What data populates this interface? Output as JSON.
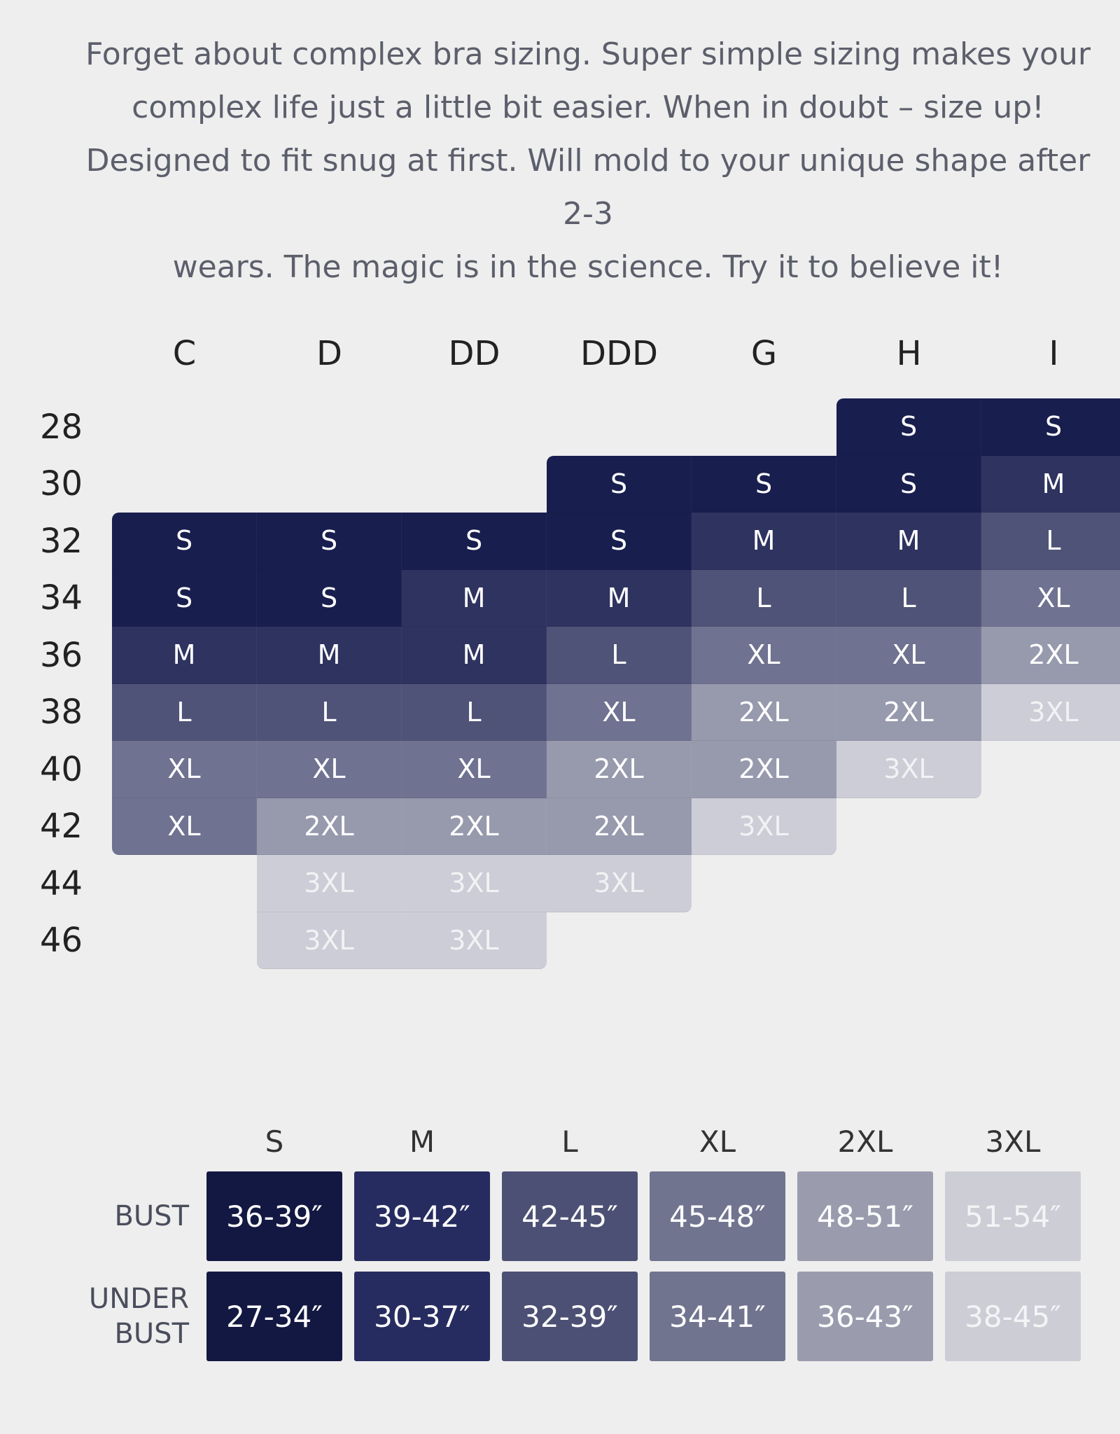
{
  "intro": {
    "line1": "Forget about complex bra sizing. Super simple sizing makes your",
    "line2": "complex life just a little bit easier. When in doubt – size up!",
    "line3": "Designed to fit snug at first. Will mold to your unique shape after 2-3",
    "line4": "wears. The magic is in the science. Try it to believe it!"
  },
  "colors": {
    "S": "#181e4e",
    "M": "#2e3360",
    "L": "#4f5377",
    "XL": "#6f7290",
    "2XL": "#9799ad",
    "3XL": "#cccdd6"
  },
  "chart_data": {
    "type": "table",
    "cups": [
      "C",
      "D",
      "DD",
      "DDD",
      "G",
      "H",
      "I"
    ],
    "bands": [
      "28",
      "30",
      "32",
      "34",
      "36",
      "38",
      "40",
      "42",
      "44",
      "46"
    ],
    "grid": [
      [
        "",
        "",
        "",
        "",
        "",
        "S",
        "S"
      ],
      [
        "",
        "",
        "",
        "S",
        "S",
        "S",
        "M"
      ],
      [
        "S",
        "S",
        "S",
        "S",
        "M",
        "M",
        "L"
      ],
      [
        "S",
        "S",
        "M",
        "M",
        "L",
        "L",
        "XL"
      ],
      [
        "M",
        "M",
        "M",
        "L",
        "XL",
        "XL",
        "2XL"
      ],
      [
        "L",
        "L",
        "L",
        "XL",
        "2XL",
        "2XL",
        "3XL"
      ],
      [
        "XL",
        "XL",
        "XL",
        "2XL",
        "2XL",
        "3XL",
        ""
      ],
      [
        "XL",
        "2XL",
        "2XL",
        "2XL",
        "3XL",
        "",
        ""
      ],
      [
        "",
        "3XL",
        "3XL",
        "3XL",
        "",
        "",
        ""
      ],
      [
        "",
        "3XL",
        "3XL",
        "",
        "",
        "",
        ""
      ]
    ]
  },
  "measurements": {
    "sizes": [
      "S",
      "M",
      "L",
      "XL",
      "2XL",
      "3XL"
    ],
    "bust_label": "BUST",
    "under_label_1": "UNDER",
    "under_label_2": "BUST",
    "bust": [
      "36-39″",
      "39-42″",
      "42-45″",
      "45-48″",
      "48-51″",
      "51-54″"
    ],
    "under_bust": [
      "27-34″",
      "30-37″",
      "32-39″",
      "34-41″",
      "36-43″",
      "38-45″"
    ],
    "colors": [
      "#131842",
      "#272c60",
      "#4c5074",
      "#71748f",
      "#9a9cae",
      "#cdcdd6"
    ]
  }
}
